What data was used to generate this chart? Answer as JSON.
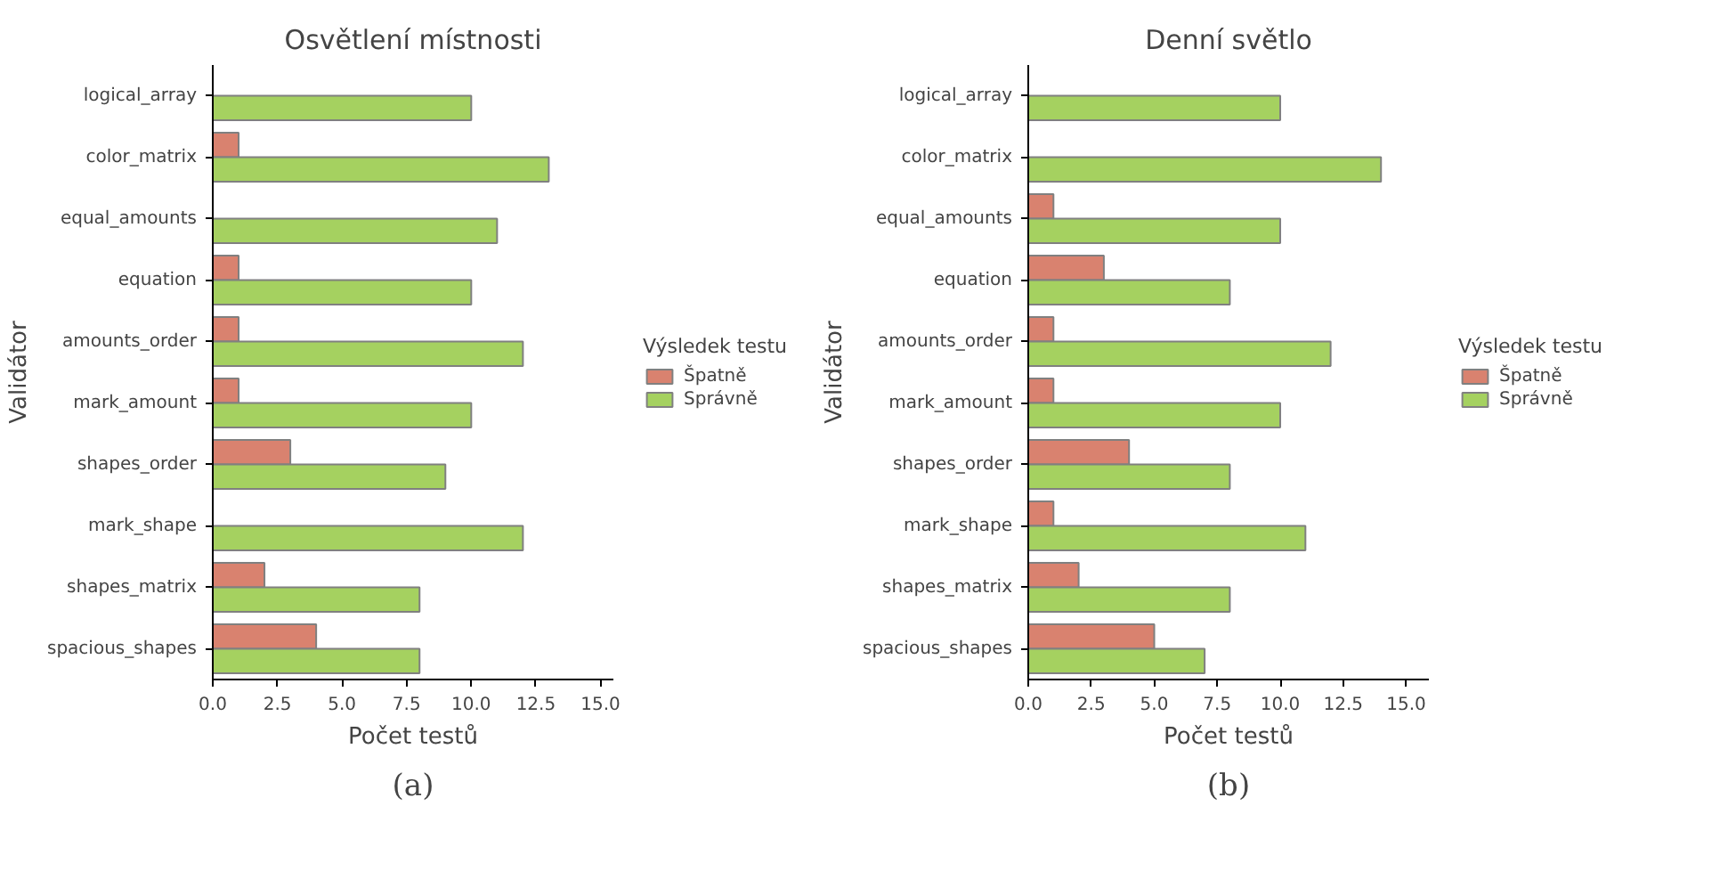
{
  "chart_data": [
    {
      "type": "bar",
      "orientation": "horizontal",
      "title": "Osvětlení místnosti",
      "xlabel": "Počet testů",
      "ylabel": "Validátor",
      "legend_title": "Výsledek testu",
      "legend": "right",
      "grid": false,
      "categories": [
        "logical_array",
        "color_matrix",
        "equal_amounts",
        "equation",
        "amounts_order",
        "mark_amount",
        "shapes_order",
        "mark_shape",
        "shapes_matrix",
        "spacious_shapes"
      ],
      "series": [
        {
          "name": "Špatně",
          "color": "#d9826f",
          "values": [
            null,
            1,
            null,
            1,
            1,
            1,
            3,
            null,
            2,
            4
          ]
        },
        {
          "name": "Správně",
          "color": "#a5d160",
          "values": [
            10,
            13,
            11,
            10,
            12,
            10,
            9,
            12,
            8,
            8
          ]
        }
      ],
      "xlim": [
        0,
        15.5
      ],
      "xticks": [
        {
          "value": 0,
          "label": "0.0"
        },
        {
          "value": 2.5,
          "label": "2.5"
        },
        {
          "value": 5,
          "label": "5.0"
        },
        {
          "value": 7.5,
          "label": "7.5"
        },
        {
          "value": 10,
          "label": "10.0"
        },
        {
          "value": 12.5,
          "label": "12.5"
        },
        {
          "value": 15,
          "label": "15.0"
        }
      ],
      "annotations": [
        "(a)"
      ]
    },
    {
      "type": "bar",
      "orientation": "horizontal",
      "title": "Denní světlo",
      "xlabel": "Počet testů",
      "ylabel": "Validátor",
      "legend_title": "Výsledek testu",
      "legend": "right",
      "grid": false,
      "categories": [
        "logical_array",
        "color_matrix",
        "equal_amounts",
        "equation",
        "amounts_order",
        "mark_amount",
        "shapes_order",
        "mark_shape",
        "shapes_matrix",
        "spacious_shapes"
      ],
      "series": [
        {
          "name": "Špatně",
          "color": "#d9826f",
          "values": [
            null,
            null,
            1,
            3,
            1,
            1,
            4,
            1,
            2,
            5
          ]
        },
        {
          "name": "Správně",
          "color": "#a5d160",
          "values": [
            10,
            14,
            10,
            8,
            12,
            10,
            8,
            11,
            8,
            7
          ]
        }
      ],
      "xlim": [
        0,
        15.9
      ],
      "xticks": [
        {
          "value": 0,
          "label": "0.0"
        },
        {
          "value": 2.5,
          "label": "2.5"
        },
        {
          "value": 5,
          "label": "5.0"
        },
        {
          "value": 7.5,
          "label": "7.5"
        },
        {
          "value": 10,
          "label": "10.0"
        },
        {
          "value": 12.5,
          "label": "12.5"
        },
        {
          "value": 15,
          "label": "15.0"
        }
      ],
      "annotations": [
        "(b)"
      ]
    }
  ]
}
